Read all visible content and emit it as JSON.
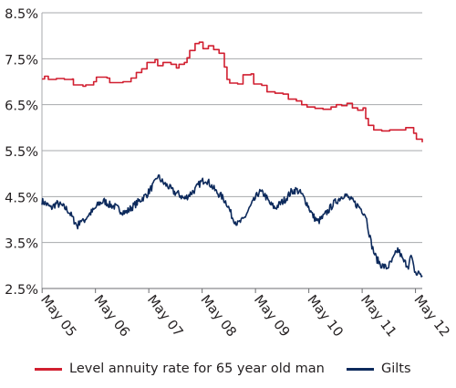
{
  "chart_data": {
    "type": "line",
    "title": "",
    "xlabel": "",
    "ylabel": "",
    "x_ticks": [
      "May 05",
      "May 06",
      "May 07",
      "May 08",
      "May 09",
      "May 10",
      "May 11",
      "May 12"
    ],
    "y_ticks": [
      "8.5%",
      "7.5%",
      "6.5%",
      "5.5%",
      "4.5%",
      "3.5%",
      "2.5%"
    ],
    "xlim": [
      2005.33,
      2012.46
    ],
    "ylim": [
      2.5,
      8.5
    ],
    "grid": true,
    "legend_placement": "bottom",
    "series": [
      {
        "name": "Level annuity rate for 65 year old man",
        "color": "#d11f30",
        "step": true,
        "points": [
          [
            2005.33,
            7.06
          ],
          [
            2005.38,
            7.12
          ],
          [
            2005.45,
            7.05
          ],
          [
            2005.6,
            7.07
          ],
          [
            2005.75,
            7.05
          ],
          [
            2005.9,
            7.06
          ],
          [
            2005.92,
            6.93
          ],
          [
            2006.1,
            6.9
          ],
          [
            2006.15,
            6.93
          ],
          [
            2006.3,
            7.0
          ],
          [
            2006.35,
            7.1
          ],
          [
            2006.55,
            7.08
          ],
          [
            2006.6,
            6.98
          ],
          [
            2006.85,
            7.0
          ],
          [
            2007.0,
            7.08
          ],
          [
            2007.1,
            7.2
          ],
          [
            2007.2,
            7.28
          ],
          [
            2007.3,
            7.42
          ],
          [
            2007.45,
            7.48
          ],
          [
            2007.5,
            7.35
          ],
          [
            2007.6,
            7.42
          ],
          [
            2007.75,
            7.38
          ],
          [
            2007.85,
            7.3
          ],
          [
            2007.9,
            7.38
          ],
          [
            2008.0,
            7.42
          ],
          [
            2008.05,
            7.52
          ],
          [
            2008.1,
            7.68
          ],
          [
            2008.2,
            7.83
          ],
          [
            2008.28,
            7.86
          ],
          [
            2008.35,
            7.72
          ],
          [
            2008.45,
            7.78
          ],
          [
            2008.55,
            7.7
          ],
          [
            2008.65,
            7.62
          ],
          [
            2008.75,
            7.32
          ],
          [
            2008.8,
            7.05
          ],
          [
            2008.85,
            6.97
          ],
          [
            2009.0,
            6.95
          ],
          [
            2009.1,
            7.15
          ],
          [
            2009.25,
            7.17
          ],
          [
            2009.3,
            6.95
          ],
          [
            2009.45,
            6.92
          ],
          [
            2009.55,
            6.78
          ],
          [
            2009.7,
            6.75
          ],
          [
            2009.85,
            6.73
          ],
          [
            2009.95,
            6.62
          ],
          [
            2010.1,
            6.58
          ],
          [
            2010.2,
            6.5
          ],
          [
            2010.3,
            6.45
          ],
          [
            2010.45,
            6.42
          ],
          [
            2010.6,
            6.4
          ],
          [
            2010.75,
            6.45
          ],
          [
            2010.85,
            6.5
          ],
          [
            2010.95,
            6.48
          ],
          [
            2011.05,
            6.53
          ],
          [
            2011.15,
            6.43
          ],
          [
            2011.25,
            6.38
          ],
          [
            2011.35,
            6.43
          ],
          [
            2011.4,
            6.2
          ],
          [
            2011.45,
            6.05
          ],
          [
            2011.55,
            5.95
          ],
          [
            2011.7,
            5.93
          ],
          [
            2011.85,
            5.95
          ],
          [
            2012.05,
            5.95
          ],
          [
            2012.15,
            6.0
          ],
          [
            2012.3,
            5.88
          ],
          [
            2012.35,
            5.75
          ],
          [
            2012.46,
            5.68
          ]
        ]
      },
      {
        "name": "Gilts",
        "color": "#0d2a5c",
        "step": false,
        "points": [
          [
            2005.33,
            4.4
          ],
          [
            2005.4,
            4.35
          ],
          [
            2005.5,
            4.25
          ],
          [
            2005.6,
            4.35
          ],
          [
            2005.7,
            4.3
          ],
          [
            2005.8,
            4.22
          ],
          [
            2005.85,
            4.15
          ],
          [
            2005.92,
            4.0
          ],
          [
            2006.0,
            3.85
          ],
          [
            2006.05,
            4.0
          ],
          [
            2006.1,
            3.95
          ],
          [
            2006.2,
            4.1
          ],
          [
            2006.3,
            4.2
          ],
          [
            2006.4,
            4.35
          ],
          [
            2006.5,
            4.4
          ],
          [
            2006.6,
            4.32
          ],
          [
            2006.7,
            4.28
          ],
          [
            2006.8,
            4.2
          ],
          [
            2006.9,
            4.15
          ],
          [
            2007.0,
            4.25
          ],
          [
            2007.1,
            4.35
          ],
          [
            2007.2,
            4.45
          ],
          [
            2007.3,
            4.55
          ],
          [
            2007.4,
            4.72
          ],
          [
            2007.45,
            4.8
          ],
          [
            2007.5,
            4.95
          ],
          [
            2007.6,
            4.8
          ],
          [
            2007.7,
            4.72
          ],
          [
            2007.8,
            4.6
          ],
          [
            2007.9,
            4.55
          ],
          [
            2008.0,
            4.45
          ],
          [
            2008.1,
            4.55
          ],
          [
            2008.2,
            4.65
          ],
          [
            2008.3,
            4.8
          ],
          [
            2008.4,
            4.88
          ],
          [
            2008.5,
            4.75
          ],
          [
            2008.6,
            4.6
          ],
          [
            2008.7,
            4.5
          ],
          [
            2008.8,
            4.35
          ],
          [
            2008.9,
            4.05
          ],
          [
            2009.0,
            3.9
          ],
          [
            2009.05,
            3.95
          ],
          [
            2009.1,
            3.98
          ],
          [
            2009.2,
            4.2
          ],
          [
            2009.3,
            4.4
          ],
          [
            2009.4,
            4.6
          ],
          [
            2009.5,
            4.55
          ],
          [
            2009.6,
            4.35
          ],
          [
            2009.7,
            4.25
          ],
          [
            2009.8,
            4.35
          ],
          [
            2009.9,
            4.45
          ],
          [
            2010.0,
            4.6
          ],
          [
            2010.1,
            4.65
          ],
          [
            2010.2,
            4.55
          ],
          [
            2010.3,
            4.35
          ],
          [
            2010.4,
            4.1
          ],
          [
            2010.5,
            3.95
          ],
          [
            2010.6,
            4.05
          ],
          [
            2010.7,
            4.2
          ],
          [
            2010.8,
            4.35
          ],
          [
            2010.9,
            4.45
          ],
          [
            2011.0,
            4.55
          ],
          [
            2011.1,
            4.45
          ],
          [
            2011.2,
            4.35
          ],
          [
            2011.3,
            4.25
          ],
          [
            2011.4,
            4.1
          ],
          [
            2011.45,
            3.8
          ],
          [
            2011.5,
            3.5
          ],
          [
            2011.55,
            3.3
          ],
          [
            2011.6,
            3.15
          ],
          [
            2011.7,
            3.0
          ],
          [
            2011.8,
            2.95
          ],
          [
            2011.9,
            3.1
          ],
          [
            2012.0,
            3.35
          ],
          [
            2012.05,
            3.25
          ],
          [
            2012.1,
            3.1
          ],
          [
            2012.2,
            3.0
          ],
          [
            2012.25,
            3.2
          ],
          [
            2012.3,
            2.95
          ],
          [
            2012.35,
            2.8
          ],
          [
            2012.4,
            2.85
          ],
          [
            2012.46,
            2.78
          ]
        ]
      }
    ]
  }
}
